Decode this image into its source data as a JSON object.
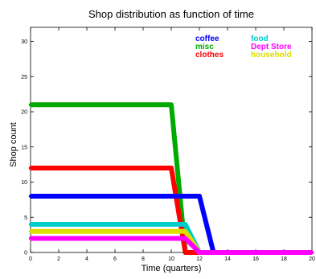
{
  "chart_data": {
    "type": "line",
    "title": "Shop distribution as function of time",
    "xlabel": "Time (quarters)",
    "ylabel": "Shop count",
    "xlim": [
      0,
      20
    ],
    "ylim": [
      0,
      32
    ],
    "xticks": [
      0,
      2,
      4,
      6,
      8,
      10,
      12,
      14,
      16,
      18,
      20
    ],
    "yticks": [
      0,
      5,
      10,
      15,
      20,
      25,
      30
    ],
    "grid": false,
    "legend_position": "top-right",
    "x": [
      0,
      1,
      2,
      3,
      4,
      5,
      6,
      7,
      8,
      9,
      10,
      11,
      12,
      13,
      14,
      15,
      16,
      17,
      18,
      19,
      20
    ],
    "series": [
      {
        "name": "coffee",
        "color": "#0000ff",
        "values": [
          8,
          8,
          8,
          8,
          8,
          8,
          8,
          8,
          8,
          8,
          8,
          8,
          8,
          0,
          0,
          0,
          0,
          0,
          0,
          0,
          0
        ]
      },
      {
        "name": "misc",
        "color": "#00aa00",
        "values": [
          21,
          21,
          21,
          21,
          21,
          21,
          21,
          21,
          21,
          21,
          21,
          0,
          0,
          0,
          0,
          0,
          0,
          0,
          0,
          0,
          0
        ]
      },
      {
        "name": "clothes",
        "color": "#ff0000",
        "values": [
          12,
          12,
          12,
          12,
          12,
          12,
          12,
          12,
          12,
          12,
          12,
          0,
          0,
          0,
          0,
          0,
          0,
          0,
          0,
          0,
          0
        ]
      },
      {
        "name": "food",
        "color": "#00cccc",
        "values": [
          4,
          4,
          4,
          4,
          4,
          4,
          4,
          4,
          4,
          4,
          4,
          4,
          0,
          0,
          0,
          0,
          0,
          0,
          0,
          0,
          0
        ]
      },
      {
        "name": "Dept Store",
        "color": "#ff00ff",
        "values": [
          2,
          2,
          2,
          2,
          2,
          2,
          2,
          2,
          2,
          2,
          2,
          2,
          0,
          0,
          0,
          0,
          0,
          0,
          0,
          0,
          0
        ]
      },
      {
        "name": "household",
        "color": "#dddd00",
        "values": [
          3,
          3,
          3,
          3,
          3,
          3,
          3,
          3,
          3,
          3,
          3,
          3,
          0,
          0,
          0,
          0,
          0,
          0,
          0,
          0,
          0
        ]
      }
    ]
  }
}
